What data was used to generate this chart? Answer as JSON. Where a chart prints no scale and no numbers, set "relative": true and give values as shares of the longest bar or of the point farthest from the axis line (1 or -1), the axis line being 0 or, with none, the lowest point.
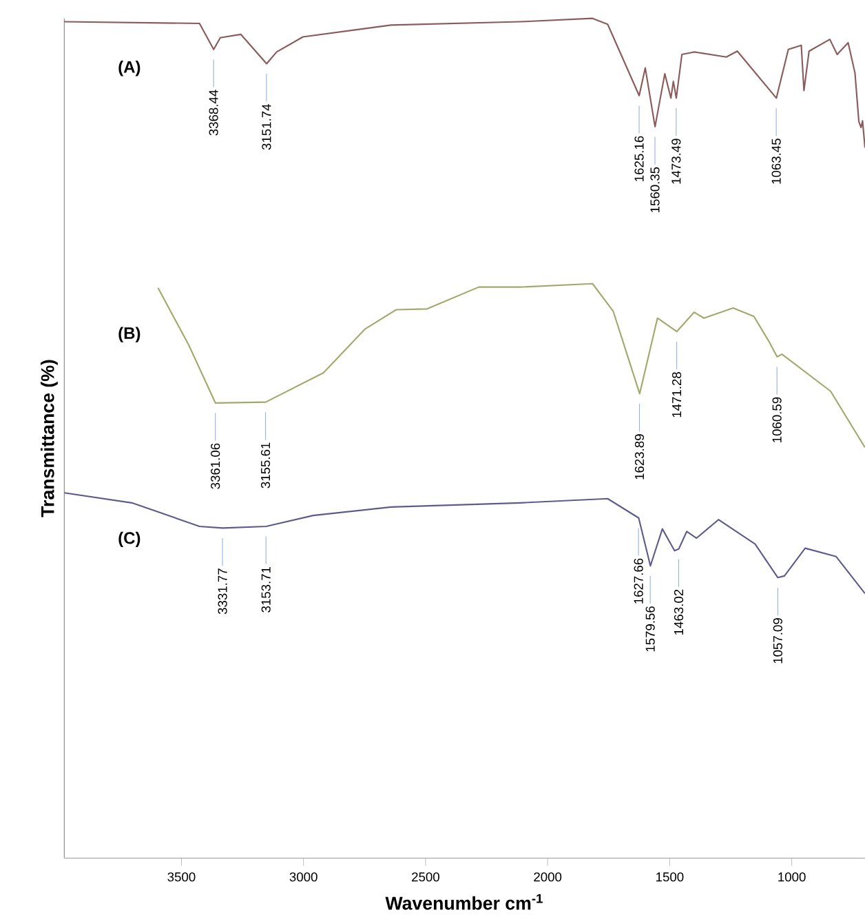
{
  "chart_data": {
    "type": "line",
    "xlabel": "Wavenumber cm$^{-1}$",
    "ylabel": "Transmittance (%)",
    "relative": true,
    "xlim": [
      3980,
      700
    ],
    "xticks": [
      3500,
      3000,
      2500,
      2000,
      1500,
      1000
    ],
    "series": [
      {
        "name": "(A)",
        "color": "#8b5a5a",
        "x": [
          3980,
          3426,
          3368,
          3341,
          3257,
          3151,
          3110,
          3002,
          2641,
          2113,
          1816,
          1754,
          1625,
          1600,
          1560,
          1520,
          1495,
          1485,
          1473,
          1450,
          1400,
          1268,
          1223,
          1063,
          1014,
          961,
          950,
          929,
          844,
          814,
          769,
          741,
          725,
          716,
          710,
          700
        ],
        "values": [
          0.996,
          0.994,
          0.963,
          0.977,
          0.981,
          0.946,
          0.96,
          0.978,
          0.992,
          0.996,
          1,
          0.993,
          0.908,
          0.941,
          0.871,
          0.934,
          0.905,
          0.925,
          0.905,
          0.957,
          0.96,
          0.954,
          0.961,
          0.905,
          0.963,
          0.968,
          0.914,
          0.961,
          0.975,
          0.957,
          0.971,
          0.935,
          0.877,
          0.87,
          0.878,
          0.846
        ]
      },
      {
        "name": "(B)",
        "color": "#a3a86b",
        "x": [
          3596,
          3470,
          3361,
          3155,
          2918,
          2748,
          2621,
          2494,
          2282,
          2113,
          1816,
          1731,
          1623,
          1550,
          1471,
          1400,
          1360,
          1240,
          1155,
          1093,
          1060,
          1040,
          841,
          700
        ],
        "values": [
          0.679,
          0.611,
          0.542,
          0.543,
          0.578,
          0.63,
          0.653,
          0.654,
          0.68,
          0.68,
          0.684,
          0.651,
          0.553,
          0.643,
          0.627,
          0.65,
          0.643,
          0.655,
          0.645,
          0.615,
          0.597,
          0.6,
          0.556,
          0.489
        ]
      },
      {
        "name": "(C)",
        "color": "#5d5b8c",
        "x": [
          3980,
          3703,
          3426,
          3331,
          3153,
          2960,
          2641,
          2113,
          1754,
          1627,
          1579,
          1530,
          1480,
          1463,
          1430,
          1390,
          1300,
          1150,
          1057,
          1030,
          945,
          818,
          700
        ],
        "values": [
          0.435,
          0.423,
          0.395,
          0.393,
          0.395,
          0.408,
          0.418,
          0.423,
          0.428,
          0.405,
          0.348,
          0.392,
          0.366,
          0.368,
          0.389,
          0.381,
          0.403,
          0.374,
          0.334,
          0.336,
          0.369,
          0.359,
          0.315
        ]
      }
    ],
    "annotations": [
      {
        "text": "3368.44",
        "x": 3368.44,
        "y": 0.963
      },
      {
        "text": "3151.74",
        "x": 3151.74,
        "y": 0.946
      },
      {
        "text": "1625.16",
        "x": 1625.16,
        "y": 0.908
      },
      {
        "text": "1560.35",
        "x": 1560.35,
        "y": 0.871
      },
      {
        "text": "1473.49",
        "x": 1473.49,
        "y": 0.905
      },
      {
        "text": "1063.45",
        "x": 1063.45,
        "y": 0.905
      },
      {
        "text": "3361.06",
        "x": 3361.06,
        "y": 0.542
      },
      {
        "text": "3155.61",
        "x": 3155.61,
        "y": 0.543
      },
      {
        "text": "1623.89",
        "x": 1623.89,
        "y": 0.553
      },
      {
        "text": "1471.28",
        "x": 1471.28,
        "y": 0.627
      },
      {
        "text": "1060.59",
        "x": 1060.59,
        "y": 0.597
      },
      {
        "text": "3331.77",
        "x": 3331.77,
        "y": 0.393
      },
      {
        "text": "3153.71",
        "x": 3153.71,
        "y": 0.395
      },
      {
        "text": "1627.66",
        "x": 1627.66,
        "y": 0.405
      },
      {
        "text": "1579.56",
        "x": 1579.56,
        "y": 0.348
      },
      {
        "text": "1463.02",
        "x": 1463.02,
        "y": 0.368
      },
      {
        "text": "1057.09",
        "x": 1057.09,
        "y": 0.334
      }
    ]
  }
}
